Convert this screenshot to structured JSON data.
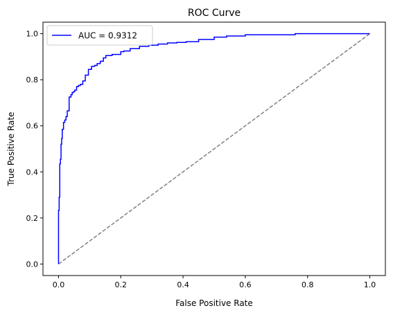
{
  "chart_data": {
    "type": "line",
    "title": "ROC Curve",
    "xlabel": "False Positive Rate",
    "ylabel": "True Positive Rate",
    "xlim": [
      -0.05,
      1.05
    ],
    "ylim": [
      -0.05,
      1.05
    ],
    "xticks": [
      0.0,
      0.2,
      0.4,
      0.6,
      0.8,
      1.0
    ],
    "yticks": [
      0.0,
      0.2,
      0.4,
      0.6,
      0.8,
      1.0
    ],
    "xtick_labels": [
      "0.0",
      "0.2",
      "0.4",
      "0.6",
      "0.8",
      "1.0"
    ],
    "ytick_labels": [
      "0.0",
      "0.2",
      "0.4",
      "0.6",
      "0.8",
      "1.0"
    ],
    "grid": false,
    "legend_position": "upper left",
    "series": [
      {
        "name": "AUC = 0.9312",
        "color": "#0000ff",
        "style": "solid",
        "x": [
          0.0,
          0.0,
          0.002,
          0.002,
          0.004,
          0.004,
          0.006,
          0.006,
          0.008,
          0.008,
          0.01,
          0.01,
          0.012,
          0.012,
          0.016,
          0.016,
          0.02,
          0.02,
          0.024,
          0.024,
          0.028,
          0.028,
          0.034,
          0.034,
          0.04,
          0.04,
          0.044,
          0.044,
          0.048,
          0.048,
          0.052,
          0.052,
          0.058,
          0.058,
          0.064,
          0.064,
          0.07,
          0.07,
          0.078,
          0.078,
          0.086,
          0.086,
          0.096,
          0.096,
          0.106,
          0.106,
          0.116,
          0.116,
          0.124,
          0.124,
          0.134,
          0.134,
          0.144,
          0.144,
          0.152,
          0.152,
          0.172,
          0.172,
          0.2,
          0.2,
          0.21,
          0.21,
          0.23,
          0.23,
          0.26,
          0.26,
          0.29,
          0.29,
          0.32,
          0.32,
          0.35,
          0.35,
          0.38,
          0.38,
          0.41,
          0.41,
          0.45,
          0.45,
          0.5,
          0.5,
          0.54,
          0.54,
          0.6,
          0.6,
          0.76,
          0.76,
          1.0
        ],
        "y": [
          0.0,
          0.233,
          0.233,
          0.29,
          0.29,
          0.435,
          0.435,
          0.455,
          0.455,
          0.52,
          0.52,
          0.545,
          0.545,
          0.585,
          0.585,
          0.615,
          0.615,
          0.625,
          0.625,
          0.64,
          0.64,
          0.665,
          0.665,
          0.725,
          0.725,
          0.735,
          0.735,
          0.745,
          0.745,
          0.748,
          0.748,
          0.755,
          0.755,
          0.77,
          0.77,
          0.775,
          0.775,
          0.78,
          0.78,
          0.795,
          0.795,
          0.82,
          0.82,
          0.845,
          0.845,
          0.858,
          0.858,
          0.862,
          0.862,
          0.87,
          0.87,
          0.88,
          0.88,
          0.895,
          0.895,
          0.905,
          0.905,
          0.91,
          0.91,
          0.922,
          0.922,
          0.925,
          0.925,
          0.935,
          0.935,
          0.945,
          0.945,
          0.95,
          0.95,
          0.955,
          0.955,
          0.96,
          0.96,
          0.962,
          0.962,
          0.965,
          0.965,
          0.975,
          0.975,
          0.985,
          0.985,
          0.99,
          0.99,
          0.995,
          0.995,
          1.0,
          1.0
        ]
      },
      {
        "name": "",
        "color": "#808080",
        "style": "dashed",
        "x": [
          0.0,
          1.0
        ],
        "y": [
          0.0,
          1.0
        ]
      }
    ]
  }
}
